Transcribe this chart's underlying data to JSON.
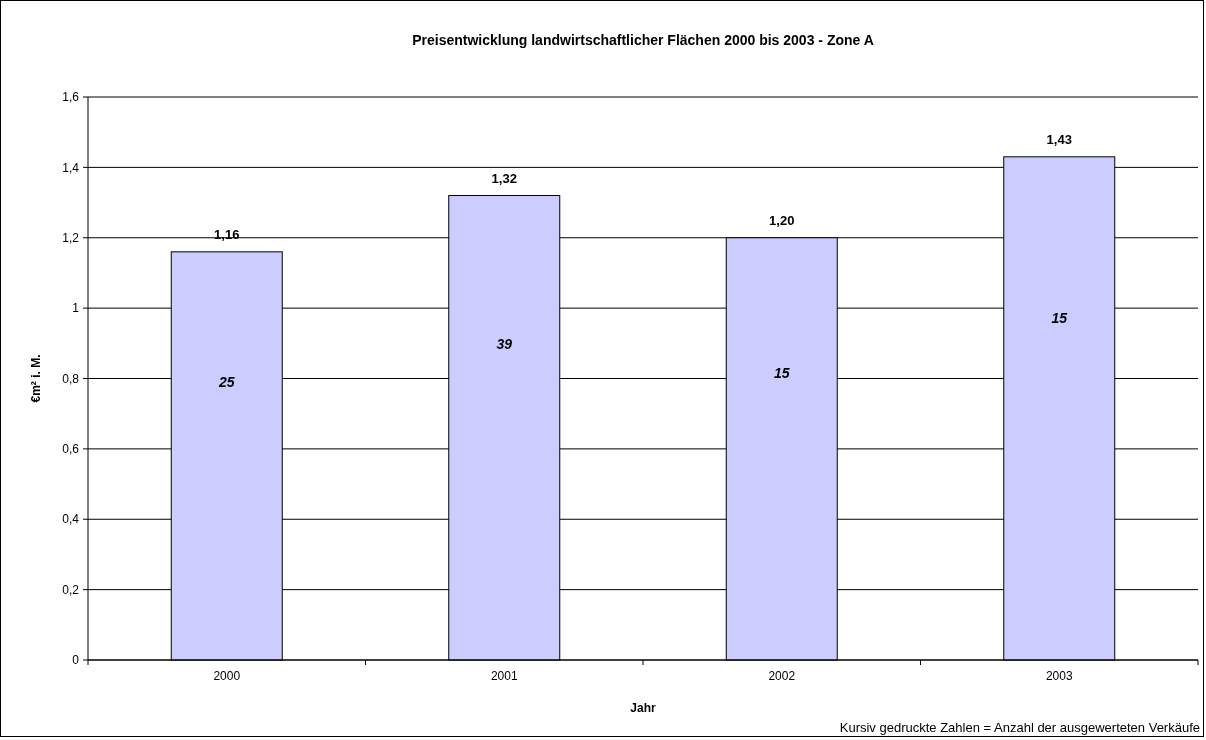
{
  "chart_data": {
    "type": "bar",
    "title": "Preisentwicklung landwirtschaftlicher Flächen 2000 bis 2003 - Zone A",
    "xlabel": "Jahr",
    "ylabel": "€m² i. M.",
    "categories": [
      "2000",
      "2001",
      "2002",
      "2003"
    ],
    "values": [
      1.16,
      1.32,
      1.2,
      1.43
    ],
    "value_labels": [
      "1,16",
      "1,32",
      "1,20",
      "1,43"
    ],
    "color": "#ccccff",
    "ylim": [
      0,
      1.6
    ],
    "yticks": [
      0,
      {
        "value": 0.2,
        "label": "0,2"
      },
      {
        "value": 0.4,
        "label": "0,4"
      },
      {
        "value": 0.6,
        "label": "0,6"
      },
      {
        "value": 0.8,
        "label": "0,8"
      },
      1,
      {
        "value": 1.2,
        "label": "1,2"
      },
      {
        "value": 1.4,
        "label": "1,4"
      },
      {
        "value": 1.6,
        "label": "1,6"
      }
    ],
    "grid": "y",
    "annotations": [
      "25",
      "39",
      "15",
      "15",
      "Kursiv gedruckte Zahlen = Anzahl der ausgewerteten Verkäufe"
    ]
  }
}
